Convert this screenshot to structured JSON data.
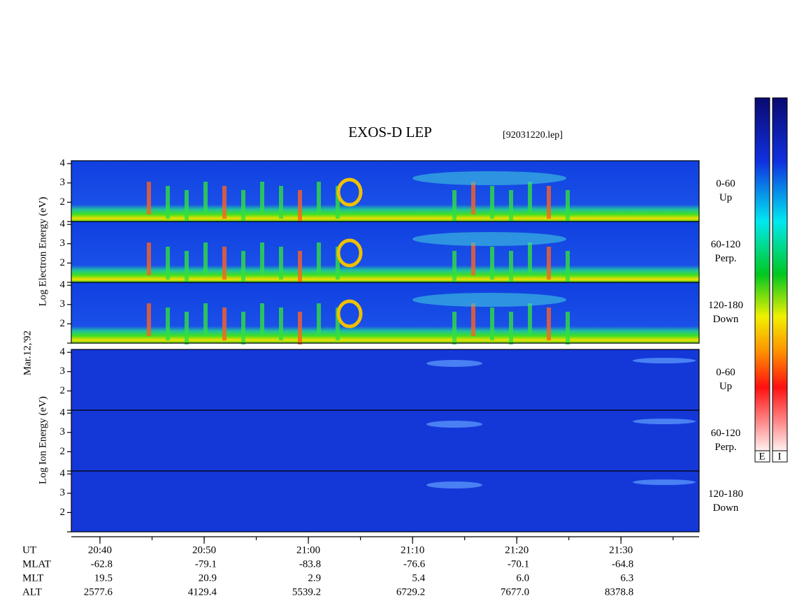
{
  "title": "EXOS-D LEP",
  "file": "[92031220.lep]",
  "date": "Mar.12,'92",
  "electron_axis_label": "Log  Electron  Energy (eV)",
  "ion_axis_label": "Log  Ion  Energy (eV)",
  "panels": [
    {
      "label": "0-60",
      "direction": "Up"
    },
    {
      "label": "60-120",
      "direction": "Perp."
    },
    {
      "label": "120-180",
      "direction": "Down"
    },
    {
      "label": "0-60",
      "direction": "Up"
    },
    {
      "label": "60-120",
      "direction": "Perp."
    },
    {
      "label": "120-180",
      "direction": "Down"
    }
  ],
  "ylim": [
    1,
    4.15
  ],
  "yticks": [
    2,
    3,
    4
  ],
  "xlim": [
    1237.25,
    1297.5
  ],
  "xticks": [
    {
      "value": 1240,
      "label": "20:40"
    },
    {
      "value": 1250,
      "label": "20:50"
    },
    {
      "value": 1260,
      "label": "21:00"
    },
    {
      "value": 1270,
      "label": "21:10"
    },
    {
      "value": 1280,
      "label": "21:20"
    },
    {
      "value": 1290,
      "label": "21:30"
    }
  ],
  "ephemeris": {
    "row_names": [
      "UT",
      "MLAT",
      "MLT",
      "ALT"
    ],
    "rows": [
      [
        "-62.8",
        "-79.1",
        "-83.8",
        "-76.6",
        "-70.1",
        "-64.8"
      ],
      [
        "19.5",
        "20.9",
        "2.9",
        "5.4",
        "6.0",
        "6.3"
      ],
      [
        "2577.6",
        "4129.4",
        "5539.2",
        "6729.2",
        "7677.0",
        "8378.8"
      ]
    ]
  },
  "colorbar_labels": [
    "E",
    "I"
  ]
}
